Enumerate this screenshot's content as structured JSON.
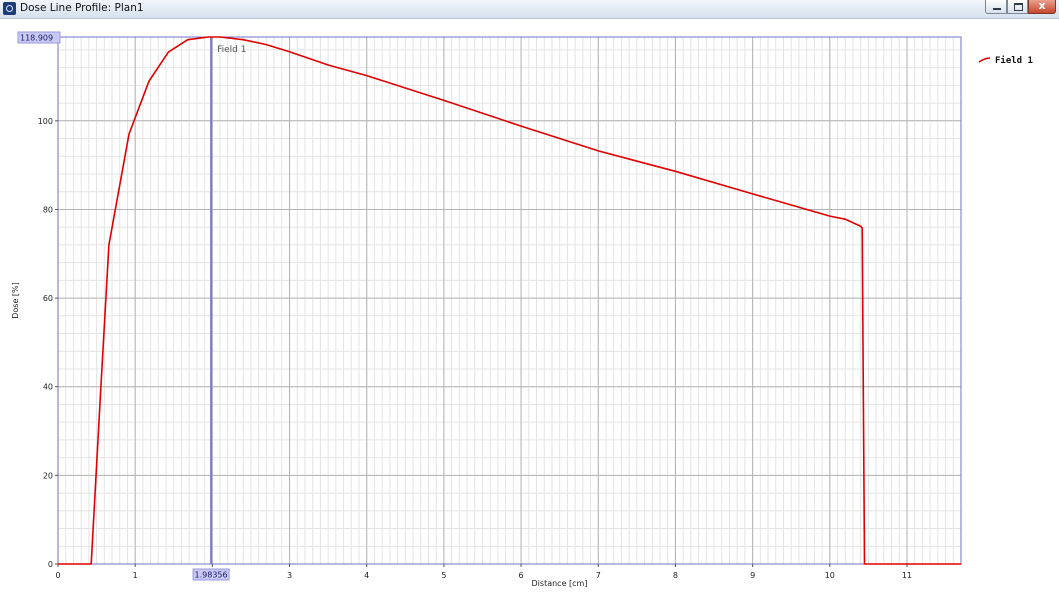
{
  "window": {
    "title": "Dose Line Profile: Plan1",
    "close_glyph": "x",
    "icon": "app-icon"
  },
  "colors": {
    "series": "#e00000",
    "cursor": "#7d7dd8",
    "tag_bg": "#c9c9f4",
    "grid_major": "#b3b3b3",
    "grid_minor": "#e4e4e4",
    "frame": "#7070c8"
  },
  "cursor": {
    "x": 1.98356,
    "y_max": 118.909,
    "x_label": "1.98356",
    "y_label": "118.909",
    "series_label": "Field 1"
  },
  "chart_data": {
    "type": "line",
    "xlabel": "Distance [cm]",
    "ylabel": "Dose [%]",
    "xlim": [
      0,
      11.7
    ],
    "ylim": [
      0,
      118.909
    ],
    "x_ticks": [
      0,
      1,
      2,
      3,
      4,
      5,
      6,
      7,
      8,
      9,
      10,
      11
    ],
    "x_tick_labels": [
      "0",
      "1",
      "",
      "3",
      "4",
      "5",
      "6",
      "7",
      "8",
      "9",
      "10",
      "11"
    ],
    "y_ticks": [
      0,
      20,
      40,
      60,
      80,
      100
    ],
    "y_tick_labels": [
      "0",
      "20",
      "40",
      "60",
      "80",
      "100"
    ],
    "grid": true,
    "legend": "right",
    "series": [
      {
        "name": "Field 1",
        "x": [
          0,
          0.43,
          0.55,
          0.66,
          0.92,
          1.18,
          1.43,
          1.68,
          1.95,
          2.1,
          2.4,
          2.7,
          3.0,
          3.5,
          4.0,
          5.0,
          6.0,
          7.0,
          8.0,
          9.0,
          10.0,
          10.2,
          10.4,
          10.42,
          10.45,
          11.7
        ],
        "y": [
          0,
          0,
          38,
          72,
          97,
          109,
          115.5,
          118.3,
          118.9,
          118.9,
          118.3,
          117.2,
          115.6,
          112.6,
          110.2,
          104.6,
          98.8,
          93.2,
          88.6,
          83.5,
          78.5,
          77.8,
          76.2,
          75.8,
          0,
          0
        ]
      }
    ]
  }
}
